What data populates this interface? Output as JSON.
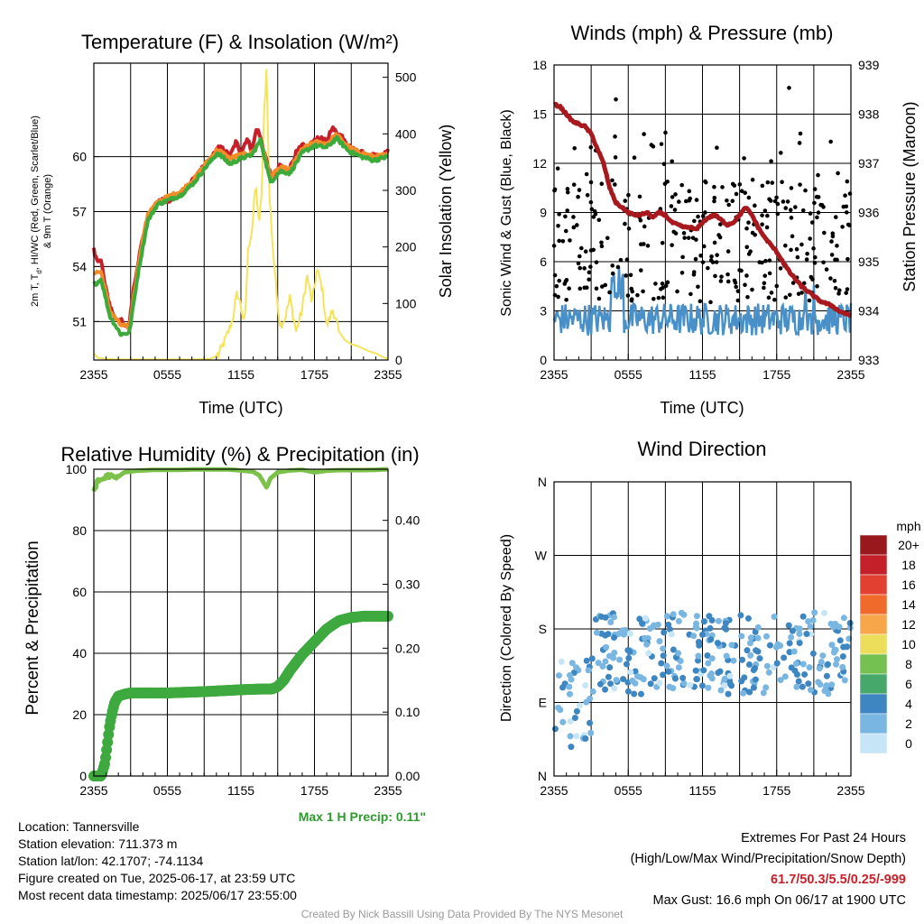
{
  "chart_data": [
    {
      "type": "line",
      "title": "Temperature (F) & Insolation (W/m²)",
      "xlabel": "Time (UTC)",
      "ylabel_left_lines": [
        "2m T, T",
        "d",
        ", HI/WC (Red, Green, Scarlet/Blue)",
        "& 9m T (Orange)"
      ],
      "ylabel_right": "Solar Insolation (Yellow)",
      "x_ticks": [
        "2355",
        "0555",
        "1155",
        "1755",
        "2355"
      ],
      "x_range_hours": [
        0,
        24
      ],
      "ylim": [
        48.9,
        65.1
      ],
      "y_ticks": [
        "51",
        "54",
        "57",
        "60"
      ],
      "y2lim": [
        0,
        525
      ],
      "y2_ticks": [
        "0",
        "100",
        "200",
        "300",
        "400",
        "500"
      ],
      "grid": true,
      "colors": {
        "temp": "#c8202a",
        "dewpoint_proxy": "#3cab3c",
        "temp9m": "#f28c28",
        "solar": "#f5e45a"
      },
      "series": [
        {
          "name": "2m T",
          "x": [
            0.0,
            0.1,
            0.6,
            0.9,
            1.3,
            1.7,
            2.2,
            2.5,
            2.9,
            3.2,
            3.6,
            4.0,
            4.4,
            4.8,
            5.2,
            5.7,
            6.0,
            6.6,
            7.1,
            7.6,
            8.2,
            8.7,
            9.1,
            9.6,
            10.1,
            10.6,
            11.1,
            11.6,
            12.0,
            12.5,
            12.9,
            13.3,
            13.6,
            14.0,
            14.4,
            14.8,
            15.2,
            15.6,
            16.0,
            16.5,
            17.0,
            17.5,
            18.0,
            18.5,
            19.0,
            19.4,
            19.8,
            20.3,
            20.8,
            21.3,
            21.8,
            22.3,
            22.8,
            23.3,
            24.0
          ],
          "y": [
            54.9,
            54.5,
            54.3,
            53.0,
            51.9,
            51.2,
            51.1,
            50.7,
            50.9,
            52.6,
            54.2,
            55.6,
            56.7,
            57.1,
            57.5,
            57.7,
            57.6,
            57.8,
            57.9,
            58.3,
            58.8,
            59.2,
            59.6,
            59.9,
            60.5,
            60.4,
            60.0,
            60.8,
            60.2,
            61.0,
            60.3,
            61.6,
            61.0,
            60.0,
            59.0,
            58.8,
            59.6,
            59.2,
            59.4,
            60.2,
            60.6,
            60.5,
            60.9,
            61.0,
            60.8,
            61.6,
            61.3,
            61.1,
            60.6,
            60.3,
            60.3,
            60.0,
            60.2,
            59.9,
            60.3
          ]
        },
        {
          "name": "9m T",
          "x": [
            0.0,
            0.6,
            1.3,
            2.2,
            2.9,
            3.6,
            4.4,
            5.2,
            6.0,
            7.1,
            8.2,
            9.1,
            10.1,
            11.1,
            12.0,
            12.9,
            13.6,
            14.4,
            15.2,
            16.0,
            17.0,
            18.0,
            19.0,
            19.8,
            20.8,
            21.8,
            22.8,
            24.0
          ],
          "y": [
            53.7,
            53.7,
            51.6,
            50.8,
            50.7,
            54.0,
            56.9,
            57.5,
            57.8,
            58.1,
            58.8,
            59.6,
            60.4,
            59.9,
            60.1,
            60.2,
            60.9,
            58.9,
            59.4,
            59.3,
            60.4,
            60.8,
            60.7,
            61.2,
            60.5,
            60.2,
            60.0,
            60.1
          ]
        },
        {
          "name": "Td / HI proxy",
          "x": [
            0.0,
            0.6,
            1.3,
            2.2,
            2.9,
            3.6,
            4.4,
            5.2,
            6.0,
            7.1,
            8.2,
            9.1,
            10.1,
            11.1,
            12.0,
            12.9,
            13.6,
            14.4,
            15.2,
            16.0,
            17.0,
            18.0,
            19.0,
            19.8,
            20.8,
            21.8,
            22.8,
            24.0
          ],
          "y": [
            53.0,
            53.3,
            51.3,
            50.3,
            50.4,
            53.6,
            56.5,
            57.4,
            57.6,
            57.9,
            58.6,
            59.4,
            60.2,
            59.6,
            59.9,
            60.1,
            60.9,
            58.6,
            59.2,
            59.1,
            60.2,
            60.6,
            60.5,
            61.0,
            60.3,
            60.0,
            59.8,
            60.0
          ]
        },
        {
          "name": "Solar",
          "x": [
            0.0,
            0.3,
            1.0,
            2.0,
            4.0,
            6.0,
            8.0,
            9.5,
            10.2,
            10.8,
            11.3,
            11.7,
            12.0,
            12.3,
            12.6,
            12.9,
            13.2,
            13.5,
            13.7,
            13.9,
            14.1,
            14.3,
            14.6,
            14.9,
            15.2,
            15.6,
            16.0,
            16.5,
            17.0,
            17.4,
            17.8,
            18.2,
            18.6,
            19.0,
            19.5,
            20.0,
            20.5,
            21.0,
            21.5,
            22.0,
            22.5,
            23.0,
            23.5,
            24.0
          ],
          "y": [
            12,
            4,
            2,
            1,
            1,
            1,
            1,
            2,
            10,
            40,
            70,
            120,
            95,
            60,
            200,
            230,
            310,
            240,
            300,
            440,
            520,
            300,
            200,
            120,
            60,
            75,
            110,
            50,
            90,
            150,
            100,
            160,
            130,
            60,
            90,
            50,
            35,
            28,
            25,
            20,
            15,
            12,
            6,
            2
          ]
        }
      ]
    },
    {
      "type": "line",
      "title": "Winds (mph) & Pressure (mb)",
      "xlabel": "Time (UTC)",
      "ylabel_left": "Sonic Wind & Gust (Blue, Black)",
      "ylabel_right": "Station Pressure (Maroon)",
      "x_ticks": [
        "2355",
        "0555",
        "1155",
        "1755",
        "2355"
      ],
      "x_range_hours": [
        0,
        24
      ],
      "ylim": [
        0,
        18
      ],
      "y_ticks": [
        "0",
        "3",
        "6",
        "9",
        "12",
        "15",
        "18"
      ],
      "y2lim": [
        933,
        939
      ],
      "y2_ticks": [
        "933",
        "934",
        "935",
        "936",
        "937",
        "938",
        "939"
      ],
      "grid": true,
      "colors": {
        "wind": "#4a90c8",
        "gust": "#000000",
        "pressure": "#a8191e"
      },
      "series": [
        {
          "name": "Pressure",
          "axis": "right",
          "x": [
            0,
            0.5,
            1,
            1.5,
            2,
            2.5,
            3,
            3.5,
            4,
            4.5,
            5,
            5.5,
            6,
            6.5,
            7,
            7.5,
            8,
            8.5,
            9,
            9.5,
            10,
            10.5,
            11,
            11.5,
            12,
            12.5,
            13,
            13.5,
            14,
            14.5,
            15,
            15.5,
            16,
            16.5,
            17,
            17.5,
            18,
            18.5,
            19,
            19.5,
            20,
            20.5,
            21,
            21.5,
            22,
            22.5,
            23,
            23.5,
            24
          ],
          "y": [
            938.2,
            938.15,
            938.0,
            937.85,
            937.8,
            937.75,
            937.6,
            937.3,
            937.0,
            936.5,
            936.2,
            936.1,
            936.0,
            935.95,
            935.95,
            936.0,
            935.9,
            936.0,
            935.95,
            935.8,
            935.75,
            935.7,
            935.7,
            935.65,
            935.8,
            935.9,
            935.95,
            935.85,
            935.75,
            935.8,
            935.95,
            936.1,
            935.95,
            935.7,
            935.5,
            935.35,
            935.2,
            935.0,
            934.8,
            934.65,
            934.5,
            934.4,
            934.3,
            934.2,
            934.15,
            934.1,
            934.0,
            933.95,
            933.9
          ]
        },
        {
          "name": "Wind",
          "axis": "left",
          "stats": {
            "typical_low": 1.5,
            "typical_high": 3.5,
            "peak": 5.5
          }
        },
        {
          "name": "Gust",
          "axis": "left",
          "stats": {
            "typical_low": 3.5,
            "typical_high": 11,
            "peak": 16.6
          }
        }
      ]
    },
    {
      "type": "line",
      "title": "Relative Humidity (%) & Precipitation (in)",
      "ylabel_left": "Percent & Precipitation",
      "x_ticks": [
        "2355",
        "0555",
        "1155",
        "1755",
        "2355"
      ],
      "x_range_hours": [
        0,
        24
      ],
      "ylim": [
        0,
        100
      ],
      "y_ticks": [
        "0",
        "20",
        "40",
        "60",
        "80",
        "100"
      ],
      "y2lim": [
        0,
        0.48
      ],
      "y2_ticks": [
        "0.00",
        "0.10",
        "0.20",
        "0.30",
        "0.40"
      ],
      "grid": true,
      "annotation": "Max 1 H Precip: 0.11\"",
      "colors": {
        "rh": "#7cc24a",
        "precip": "#3ea93e"
      },
      "series": [
        {
          "name": "RH",
          "x": [
            0,
            0.3,
            0.8,
            1.2,
            1.8,
            2.5,
            3.5,
            5,
            6,
            7,
            8,
            9,
            10,
            11,
            12,
            13,
            13.5,
            14.1,
            14.4,
            15,
            16,
            17,
            18,
            19,
            20,
            21,
            22,
            23,
            24
          ],
          "y": [
            93,
            96,
            97,
            98,
            97,
            99,
            99.5,
            99.8,
            99.8,
            99.8,
            99.9,
            99.9,
            99.9,
            99.9,
            99.6,
            99.2,
            98,
            94,
            97,
            99,
            99.6,
            99.8,
            99,
            99.5,
            99.7,
            99.7,
            99.7,
            99.8,
            100
          ]
        },
        {
          "name": "Precip",
          "x": [
            0,
            0.6,
            0.9,
            1.1,
            1.3,
            1.5,
            1.7,
            2.0,
            2.5,
            3.0,
            4.0,
            6.0,
            9.0,
            12.0,
            13.5,
            14.5,
            15.0,
            15.5,
            16.0,
            17.0,
            18.0,
            19.0,
            20.0,
            21.0,
            22.0,
            24.0
          ],
          "y": [
            0,
            0,
            0.02,
            0.05,
            0.08,
            0.1,
            0.115,
            0.125,
            0.128,
            0.13,
            0.13,
            0.13,
            0.132,
            0.135,
            0.136,
            0.136,
            0.14,
            0.15,
            0.165,
            0.19,
            0.21,
            0.23,
            0.243,
            0.248,
            0.25,
            0.25
          ]
        }
      ]
    },
    {
      "type": "scatter",
      "title": "Wind Direction",
      "ylabel_left": "Direction (Colored By Speed)",
      "x_ticks": [
        "2355",
        "0555",
        "1155",
        "1755",
        "2355"
      ],
      "x_range_hours": [
        0,
        24
      ],
      "y_ticks": [
        "N",
        "E",
        "S",
        "W",
        "N"
      ],
      "ylim_degrees": [
        0,
        360
      ],
      "grid": true,
      "legend": {
        "title": "mph",
        "position": "right",
        "labels": [
          "20+",
          "18",
          "16",
          "14",
          "12",
          "10",
          "8",
          "6",
          "4",
          "2",
          "0"
        ],
        "colors": [
          "#99181e",
          "#c4202a",
          "#e24030",
          "#f06a2c",
          "#f7a649",
          "#ecde5a",
          "#74c050",
          "#47a86b",
          "#3d86c2",
          "#79b6e2",
          "#c6e5f7"
        ]
      },
      "summary": {
        "typical_direction_range_deg": [
          100,
          200
        ],
        "early_period_range_deg": [
          30,
          150
        ]
      }
    }
  ],
  "info": {
    "location": "Location: Tannersville",
    "elevation": "Station elevation: 711.373 m",
    "latlon": "Station lat/lon: 42.1707; -74.1134",
    "created": "Figure created on Tue, 2025-06-17, at 23:59 UTC",
    "recent": "Most recent data timestamp: 2025/06/17 23:55:00"
  },
  "extremes": {
    "title": "Extremes For Past 24 Hours",
    "subtitle": "(High/Low/Max Wind/Precipitation/Snow Depth)",
    "values": "61.7/50.3/5.5/0.25/-999",
    "gust": "Max Gust: 16.6 mph On 06/17 at 1900 UTC"
  },
  "credit": "Created By Nick Bassill Using Data Provided By The NYS Mesonet"
}
